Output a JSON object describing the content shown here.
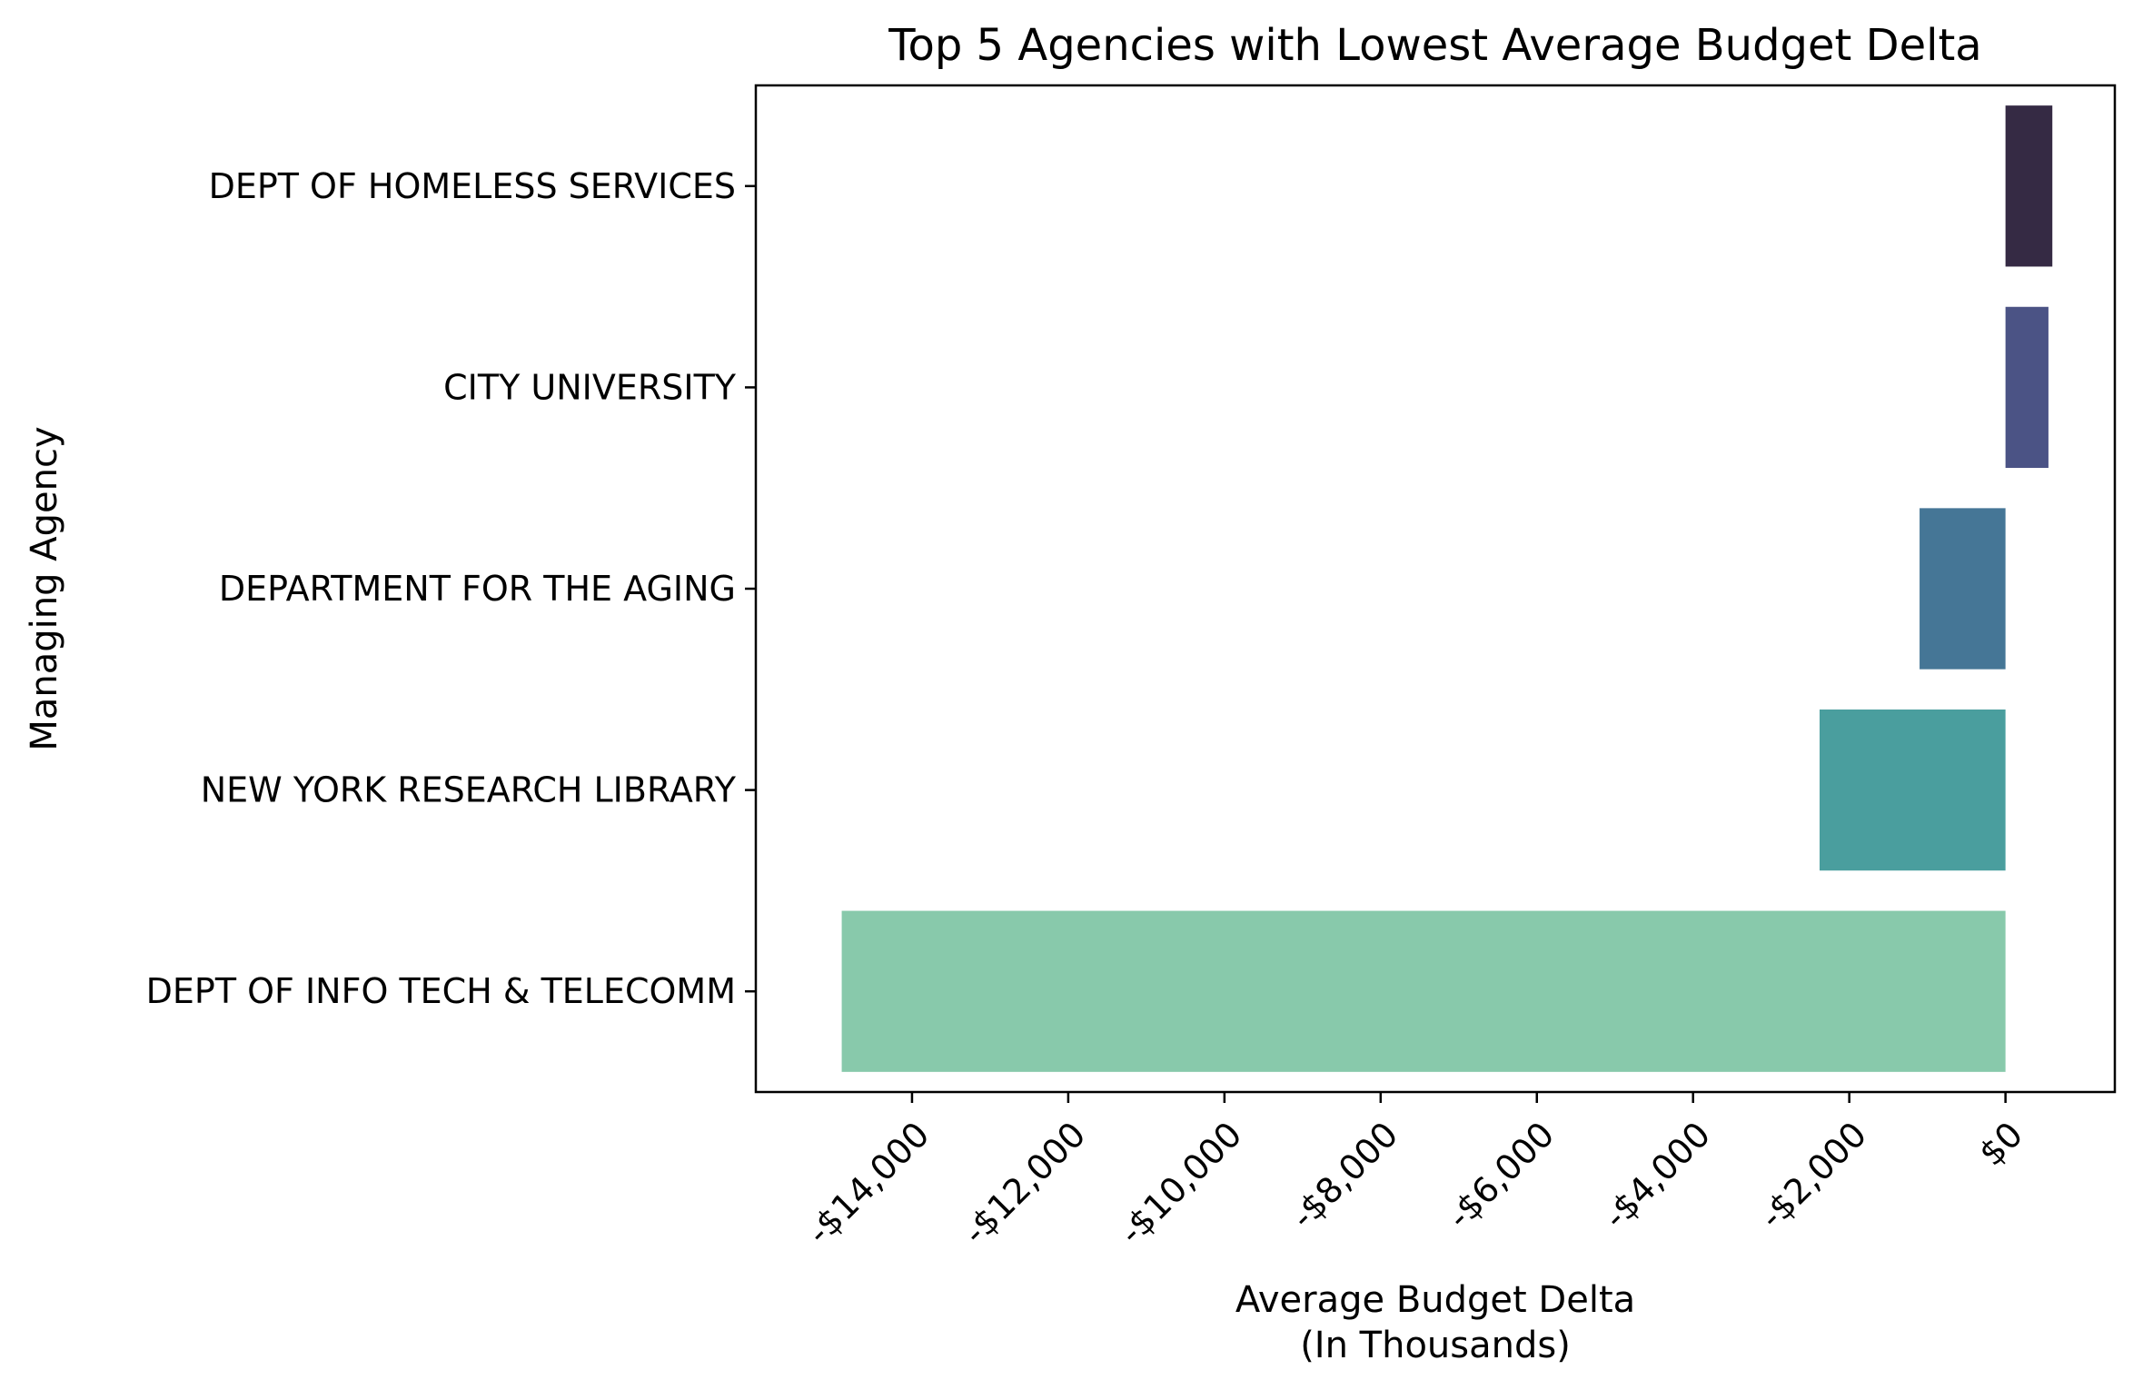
{
  "chart_data": {
    "type": "bar",
    "orientation": "horizontal",
    "title": "Top 5 Agencies with Lowest Average Budget Delta",
    "xlabel_line1": "Average Budget Delta",
    "xlabel_line2": "(In Thousands)",
    "ylabel": "Managing Agency",
    "categories": [
      "DEPT OF HOMELESS SERVICES",
      "CITY UNIVERSITY",
      "DEPARTMENT FOR THE AGING",
      "NEW YORK RESEARCH LIBRARY",
      "DEPT OF INFO TECH & TELECOMM"
    ],
    "values": [
      600,
      550,
      -1100,
      -2380,
      -14900
    ],
    "colors": [
      "#352a44",
      "#4b5385",
      "#457696",
      "#4a9e9e",
      "#88c9ab"
    ],
    "xlim": [
      -16000,
      1400
    ],
    "x_ticks": [
      -14000,
      -12000,
      -10000,
      -8000,
      -6000,
      -4000,
      -2000,
      0
    ],
    "x_tick_labels": [
      "-$14,000",
      "-$12,000",
      "-$10,000",
      "-$8,000",
      "-$6,000",
      "-$4,000",
      "-$2,000",
      "$0"
    ],
    "grid": false,
    "legend": "none"
  }
}
